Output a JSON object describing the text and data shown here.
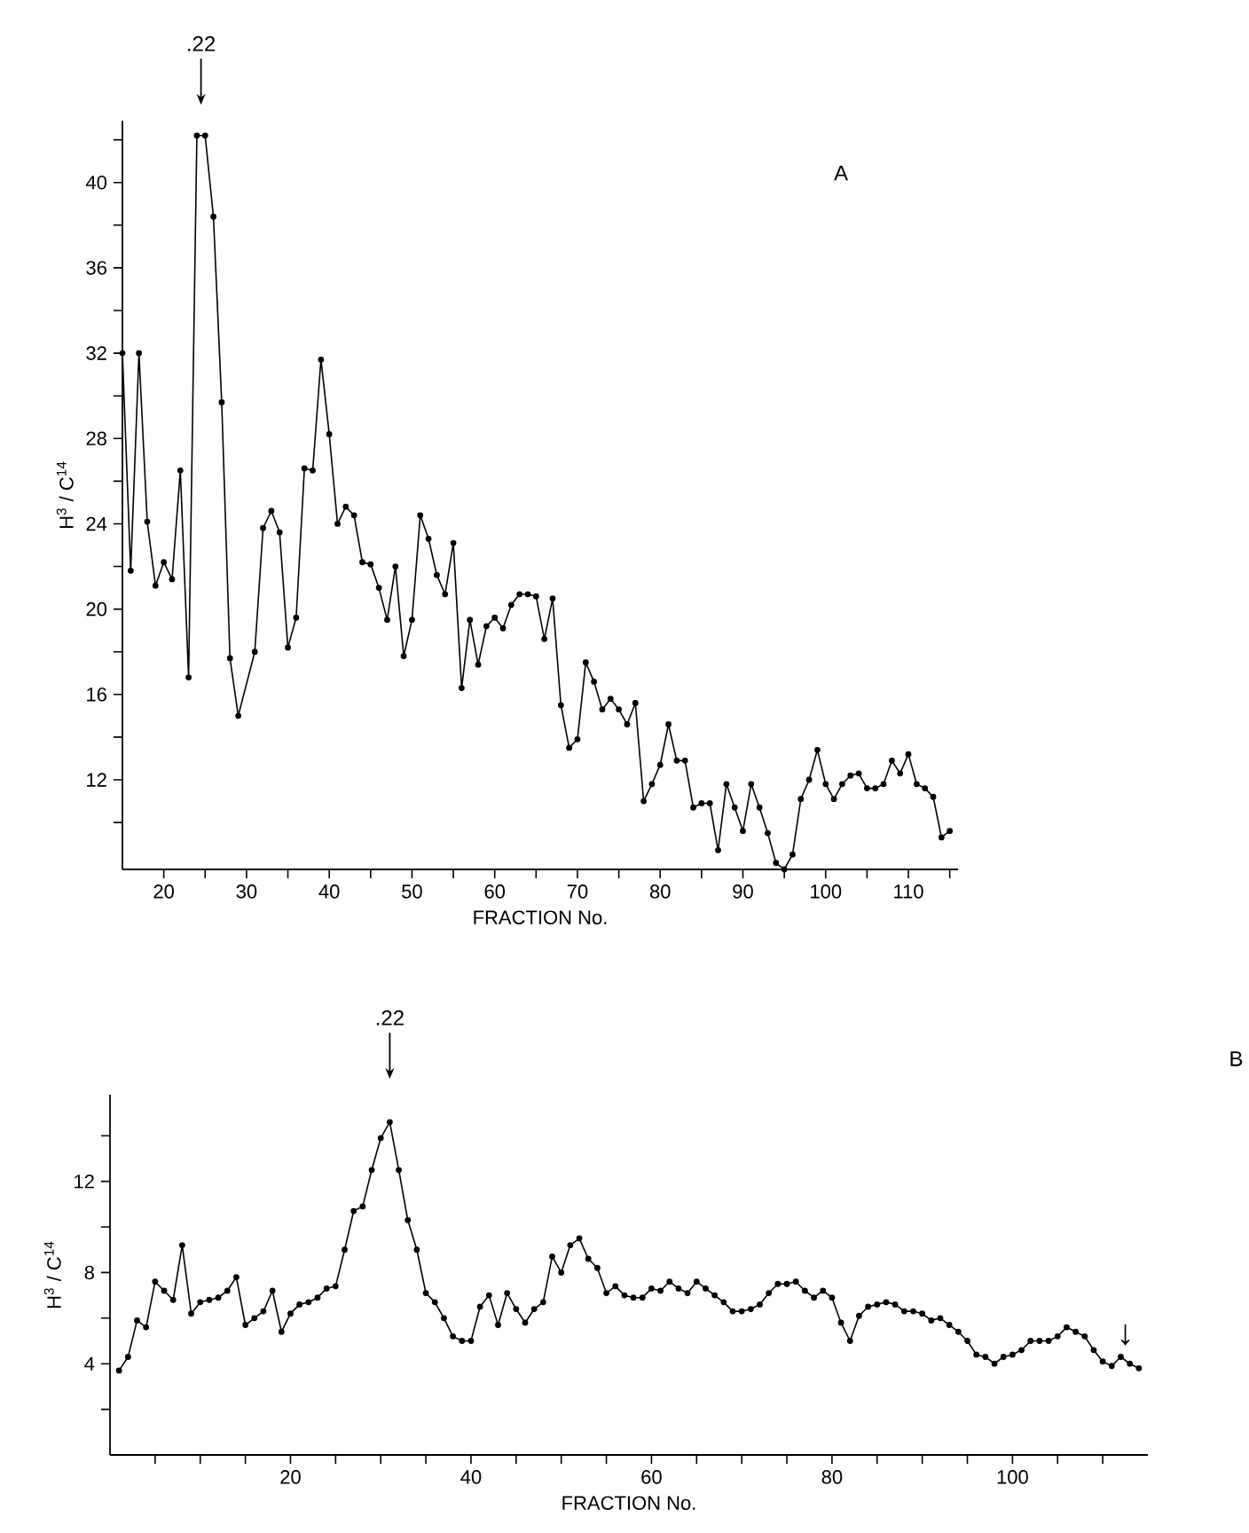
{
  "chart_data": [
    {
      "type": "line",
      "xlabel": "FRACTION No.",
      "ylabel": "H$^{3}$ / C$^{14}$",
      "color": "#000000",
      "marker": "circle",
      "line_style": "solid",
      "x": [
        15,
        16,
        17,
        18,
        19,
        20,
        21,
        22,
        23,
        24,
        25,
        26,
        27,
        28,
        29,
        31,
        32,
        33,
        34,
        35,
        36,
        37,
        38,
        39,
        40,
        41,
        42,
        43,
        44,
        45,
        46,
        47,
        48,
        49,
        50,
        51,
        52,
        53,
        54,
        55,
        56,
        57,
        58,
        59,
        60,
        61,
        62,
        63,
        64,
        65,
        66,
        67,
        68,
        69,
        70,
        71,
        72,
        73,
        74,
        75,
        76,
        77,
        78,
        79,
        80,
        81,
        82,
        83,
        84,
        85,
        86,
        87,
        88,
        89,
        90,
        91,
        92,
        93,
        94,
        95,
        96,
        97,
        98,
        99,
        100,
        101,
        102,
        103,
        104,
        105,
        106,
        107,
        108,
        109,
        110,
        111,
        112,
        113,
        114,
        115
      ],
      "values": [
        32,
        21.8,
        32,
        24.1,
        21.1,
        22.2,
        21.4,
        26.5,
        16.8,
        42.2,
        42.2,
        38.4,
        29.7,
        17.7,
        15,
        18,
        23.8,
        24.6,
        23.6,
        18.2,
        19.6,
        26.6,
        26.5,
        31.7,
        28.2,
        24,
        24.8,
        24.4,
        22.2,
        22.1,
        21,
        19.5,
        22,
        17.8,
        19.5,
        24.4,
        23.3,
        21.6,
        20.7,
        23.1,
        16.3,
        19.5,
        17.4,
        19.2,
        19.6,
        19.1,
        20.2,
        20.7,
        20.7,
        20.6,
        18.6,
        20.5,
        15.5,
        13.5,
        13.9,
        17.5,
        16.6,
        15.3,
        15.8,
        15.3,
        14.6,
        15.6,
        11,
        11.8,
        12.7,
        14.6,
        12.9,
        12.9,
        10.7,
        10.9,
        10.9,
        8.7,
        11.8,
        10.7,
        9.6,
        11.8,
        10.7,
        9.5,
        8.1,
        7.8,
        8.5,
        11.1,
        12,
        13.4,
        11.8,
        11.1,
        11.8,
        12.2,
        12.3,
        11.6,
        11.6,
        11.8,
        12.9,
        12.3,
        13.2,
        11.8,
        11.6,
        11.2,
        9.3,
        9.6
      ],
      "xlim": [
        15,
        116
      ],
      "ylim": [
        7.8,
        42.9
      ],
      "xticks": [
        20,
        {
          "value": 25,
          "label": null
        },
        30,
        {
          "value": 35,
          "label": null
        },
        40,
        {
          "value": 45,
          "label": null
        },
        50,
        {
          "value": 55,
          "label": null
        },
        60,
        {
          "value": 65,
          "label": null
        },
        70,
        {
          "value": 75,
          "label": null
        },
        80,
        {
          "value": 85,
          "label": null
        },
        90,
        {
          "value": 95,
          "label": null
        },
        100,
        {
          "value": 105,
          "label": null
        },
        110,
        {
          "value": 115,
          "label": null
        }
      ],
      "yticks": [
        {
          "value": 10,
          "label": null
        },
        12,
        {
          "value": 14,
          "label": null
        },
        16,
        {
          "value": 18,
          "label": null
        },
        20,
        {
          "value": 22,
          "label": null
        },
        24,
        {
          "value": 26,
          "label": null
        },
        28,
        {
          "value": 30,
          "label": null
        },
        32,
        {
          "value": 34,
          "label": null
        },
        36,
        {
          "value": 38,
          "label": null
        },
        40,
        {
          "value": 42,
          "label": null
        }
      ],
      "annotations": [
        {
          "text": ".22",
          "x": 24.5
        },
        "A"
      ]
    },
    {
      "type": "line",
      "xlabel": "FRACTION No.",
      "ylabel": "H$^{3}$ / C$^{14}$",
      "color": "#000000",
      "marker": "circle",
      "line_style": "solid",
      "x": [
        1,
        2,
        3,
        4,
        5,
        6,
        7,
        8,
        9,
        10,
        11,
        12,
        13,
        14,
        15,
        16,
        17,
        18,
        19,
        20,
        21,
        22,
        23,
        24,
        25,
        26,
        27,
        28,
        29,
        30,
        31,
        32,
        33,
        34,
        35,
        36,
        37,
        38,
        39,
        40,
        41,
        42,
        43,
        44,
        45,
        46,
        47,
        48,
        49,
        50,
        51,
        52,
        53,
        54,
        55,
        56,
        57,
        58,
        59,
        60,
        61,
        62,
        63,
        64,
        65,
        66,
        67,
        68,
        69,
        70,
        71,
        72,
        73,
        74,
        75,
        76,
        77,
        78,
        79,
        80,
        81,
        82,
        83,
        84,
        85,
        86,
        87,
        88,
        89,
        90,
        91,
        92,
        93,
        94,
        95,
        96,
        97,
        98,
        99,
        100,
        101,
        102,
        103,
        104,
        105,
        106,
        107,
        108,
        109,
        110,
        111,
        112,
        113,
        114
      ],
      "values": [
        3.7,
        4.3,
        5.9,
        5.6,
        7.6,
        7.2,
        6.8,
        9.2,
        6.2,
        6.7,
        6.8,
        6.9,
        7.2,
        7.8,
        5.7,
        6,
        6.3,
        7.2,
        5.4,
        6.2,
        6.6,
        6.7,
        6.9,
        7.3,
        7.4,
        9,
        10.7,
        10.9,
        12.5,
        13.9,
        14.6,
        12.5,
        10.3,
        9,
        7.1,
        6.7,
        6,
        5.2,
        5,
        5,
        6.5,
        7,
        5.7,
        7.1,
        6.4,
        5.8,
        6.4,
        6.7,
        8.7,
        8,
        9.2,
        9.5,
        8.6,
        8.2,
        7.1,
        7.4,
        7,
        6.9,
        6.9,
        7.3,
        7.2,
        7.6,
        7.3,
        7.1,
        7.6,
        7.3,
        7,
        6.7,
        6.3,
        6.3,
        6.4,
        6.6,
        7.1,
        7.5,
        7.5,
        7.6,
        7.2,
        6.9,
        7.2,
        6.9,
        5.8,
        5,
        6.1,
        6.5,
        6.6,
        6.7,
        6.6,
        6.3,
        6.3,
        6.2,
        5.9,
        6,
        5.7,
        5.4,
        5,
        4.4,
        4.3,
        4,
        4.3,
        4.4,
        4.6,
        5,
        5,
        5,
        5.2,
        5.6,
        5.4,
        5.2,
        4.6,
        4.1,
        3.9,
        4.3,
        4,
        3.8
      ],
      "xlim": [
        0,
        115
      ],
      "ylim": [
        0,
        15.8
      ],
      "xticks": [
        {
          "value": 5,
          "label": null
        },
        {
          "value": 10,
          "label": null
        },
        {
          "value": 15,
          "label": null
        },
        20,
        {
          "value": 25,
          "label": null
        },
        {
          "value": 30,
          "label": null
        },
        {
          "value": 35,
          "label": null
        },
        40,
        {
          "value": 45,
          "label": null
        },
        {
          "value": 50,
          "label": null
        },
        {
          "value": 55,
          "label": null
        },
        60,
        {
          "value": 65,
          "label": null
        },
        {
          "value": 70,
          "label": null
        },
        {
          "value": 75,
          "label": null
        },
        80,
        {
          "value": 85,
          "label": null
        },
        {
          "value": 90,
          "label": null
        },
        {
          "value": 95,
          "label": null
        },
        100,
        {
          "value": 105,
          "label": null
        },
        {
          "value": 110,
          "label": null
        }
      ],
      "yticks": [
        {
          "value": 2,
          "label": null
        },
        4,
        {
          "value": 6,
          "label": null
        },
        8,
        {
          "value": 10,
          "label": null
        },
        12,
        {
          "value": 14,
          "label": null
        }
      ],
      "annotations": [
        {
          "text": ".22",
          "x": 31
        },
        {
          "text": "↓",
          "x": 112.5,
          "y": 4.4
        },
        "B"
      ]
    }
  ]
}
